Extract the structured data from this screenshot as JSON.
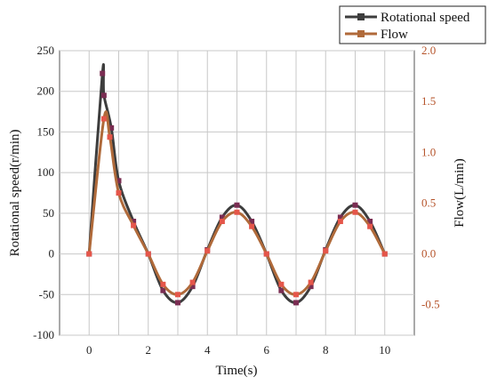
{
  "chart_data": {
    "type": "line",
    "title": "",
    "xlabel": "Time(s)",
    "ylabel_left": "Rotational speed(r/min)",
    "ylabel_right": "Flow(L/min)",
    "xlim": [
      -1,
      11
    ],
    "ylim_left": [
      -100,
      250
    ],
    "ylim_right": [
      -0.8,
      2.0
    ],
    "x_ticks": [
      0,
      2,
      4,
      6,
      8,
      10
    ],
    "y_ticks_left": [
      -100,
      -50,
      0,
      50,
      100,
      150,
      200,
      250
    ],
    "y_ticks_right": [
      "-0.5",
      "0.0",
      "0.5",
      "1.0",
      "1.5",
      "2.0"
    ],
    "grid": true,
    "legend_position": "top-right",
    "series": [
      {
        "name": "Rotational speed",
        "axis": "left",
        "color": "#3d3d3d",
        "marker_color": "#7a2d52",
        "x": [
          0,
          0.45,
          0.5,
          0.75,
          1.0,
          1.5,
          2.0,
          2.5,
          3.0,
          3.5,
          4.0,
          4.5,
          5.0,
          5.5,
          6.0,
          6.5,
          7.0,
          7.5,
          8.0,
          8.5,
          9.0,
          9.5,
          10.0
        ],
        "values": [
          0,
          222,
          195,
          155,
          90,
          40,
          0,
          -45,
          -60,
          -40,
          5,
          45,
          60,
          40,
          0,
          -45,
          -60,
          -40,
          5,
          45,
          60,
          40,
          0
        ]
      },
      {
        "name": "Flow",
        "axis": "right",
        "color": "#b06a3a",
        "marker_color": "#e5564a",
        "x": [
          0,
          0.5,
          0.7,
          1.0,
          1.5,
          2.0,
          2.5,
          3.0,
          3.5,
          4.0,
          4.5,
          5.0,
          5.5,
          6.0,
          6.5,
          7.0,
          7.5,
          8.0,
          8.5,
          9.0,
          9.5,
          10.0
        ],
        "values": [
          0,
          1.33,
          1.15,
          0.6,
          0.28,
          0,
          -0.3,
          -0.4,
          -0.28,
          0.03,
          0.32,
          0.41,
          0.27,
          0,
          -0.3,
          -0.4,
          -0.28,
          0.03,
          0.32,
          0.41,
          0.27,
          0
        ]
      }
    ]
  }
}
